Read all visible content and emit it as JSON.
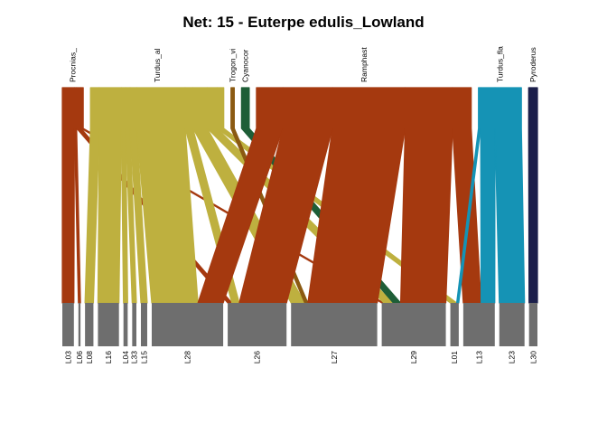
{
  "chart_data": {
    "type": "bipartite",
    "title": "Net: 15 - Euterpe edulis_Lowland",
    "higher_level": [
      {
        "label": "Procnias_",
        "color": "#A5390F"
      },
      {
        "label": "Turdus_al",
        "color": "#BEB03F"
      },
      {
        "label": "Trogon_vi",
        "color": "#8B5A12"
      },
      {
        "label": "Cyanocor",
        "color": "#1E5E37"
      },
      {
        "label": "Ramphast",
        "color": "#A5390F"
      },
      {
        "label": "Turdus_fla",
        "color": "#1593B5"
      },
      {
        "label": "Pyroderus",
        "color": "#1B1E4A"
      }
    ],
    "lower_level": [
      "L03",
      "L06",
      "L08",
      "L16",
      "L04",
      "L33",
      "L15",
      "L28",
      "L26",
      "L27",
      "L29",
      "L01",
      "L13",
      "L23",
      "L30"
    ],
    "links": [
      {
        "from": "Procnias_",
        "to": "L03",
        "weight": 11
      },
      {
        "from": "Procnias_",
        "to": "L06",
        "weight": 2
      },
      {
        "from": "Procnias_",
        "to": "L26",
        "weight": 4
      },
      {
        "from": "Procnias_",
        "to": "L29",
        "weight": 2
      },
      {
        "from": "Turdus_al",
        "to": "L08",
        "weight": 8
      },
      {
        "from": "Turdus_al",
        "to": "L16",
        "weight": 20
      },
      {
        "from": "Turdus_al",
        "to": "L04",
        "weight": 4
      },
      {
        "from": "Turdus_al",
        "to": "L33",
        "weight": 4
      },
      {
        "from": "Turdus_al",
        "to": "L15",
        "weight": 6
      },
      {
        "from": "Turdus_al",
        "to": "L28",
        "weight": 44
      },
      {
        "from": "Turdus_al",
        "to": "L26",
        "weight": 7
      },
      {
        "from": "Turdus_al",
        "to": "L27",
        "weight": 13
      },
      {
        "from": "Turdus_al",
        "to": "L29",
        "weight": 9
      },
      {
        "from": "Turdus_al",
        "to": "L01",
        "weight": 6
      },
      {
        "from": "Trogon_vi",
        "to": "L27",
        "weight": 3
      },
      {
        "from": "Cyanocor",
        "to": "L29",
        "weight": 7
      },
      {
        "from": "Ramphast",
        "to": "L28",
        "weight": 24
      },
      {
        "from": "Ramphast",
        "to": "L26",
        "weight": 45
      },
      {
        "from": "Ramphast",
        "to": "L27",
        "weight": 66
      },
      {
        "from": "Ramphast",
        "to": "L29",
        "weight": 43
      },
      {
        "from": "Ramphast",
        "to": "L13",
        "weight": 17
      },
      {
        "from": "Turdus_fla",
        "to": "L01",
        "weight": 2
      },
      {
        "from": "Turdus_fla",
        "to": "L13",
        "weight": 13
      },
      {
        "from": "Turdus_fla",
        "to": "L23",
        "weight": 24
      },
      {
        "from": "Pyroderus",
        "to": "L30",
        "weight": 8
      }
    ]
  }
}
